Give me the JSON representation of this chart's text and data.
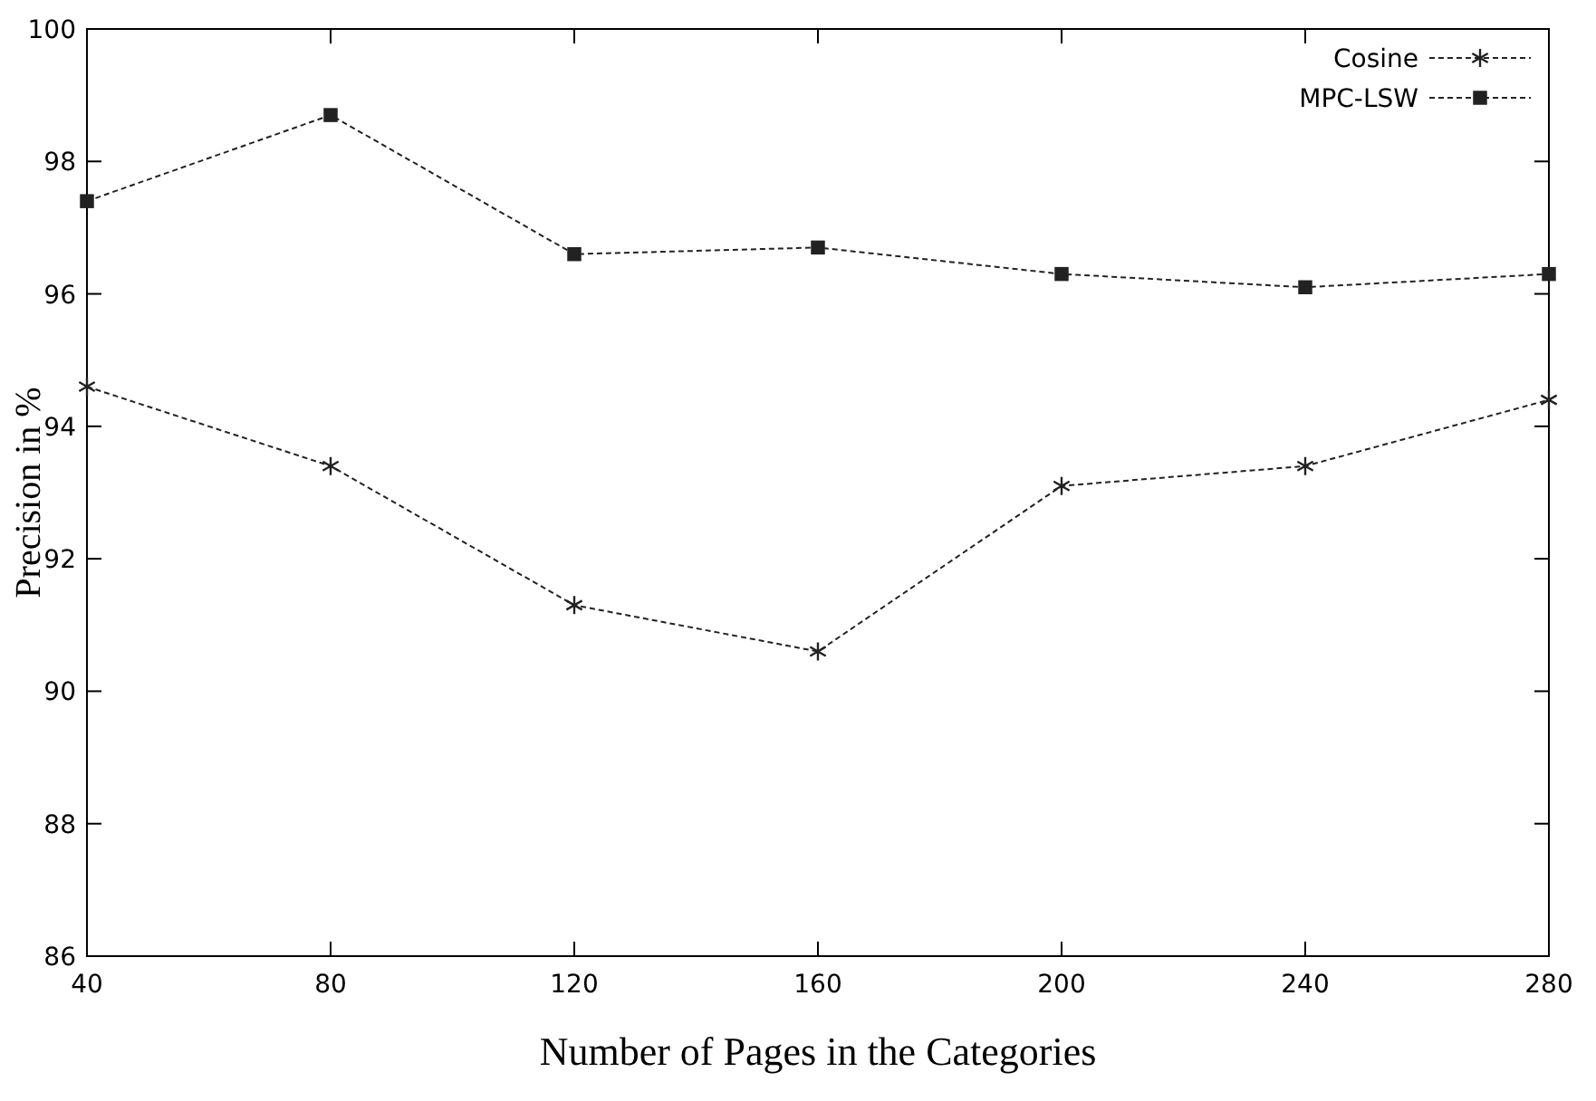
{
  "chart_data": {
    "type": "line",
    "xlabel": "Number of Pages in the Categories",
    "ylabel": "Precision in %",
    "x": [
      40,
      80,
      120,
      160,
      200,
      240,
      280
    ],
    "series": [
      {
        "name": "Cosine",
        "color": "#222222",
        "marker": "cross",
        "values": [
          94.6,
          93.4,
          91.3,
          90.6,
          93.1,
          93.4,
          94.4
        ]
      },
      {
        "name": "MPC-LSW",
        "color": "#222222",
        "marker": "square",
        "values": [
          97.4,
          98.7,
          96.6,
          96.7,
          96.3,
          96.1,
          96.3
        ]
      }
    ],
    "xlim": [
      40,
      280
    ],
    "xticks": [
      40,
      80,
      120,
      160,
      200,
      240,
      280
    ],
    "ylim": [
      86,
      100
    ],
    "yticks": [
      86,
      88,
      90,
      92,
      94,
      96,
      98,
      100
    ],
    "grid": false,
    "legend": "top right",
    "line_style": "dashed"
  }
}
